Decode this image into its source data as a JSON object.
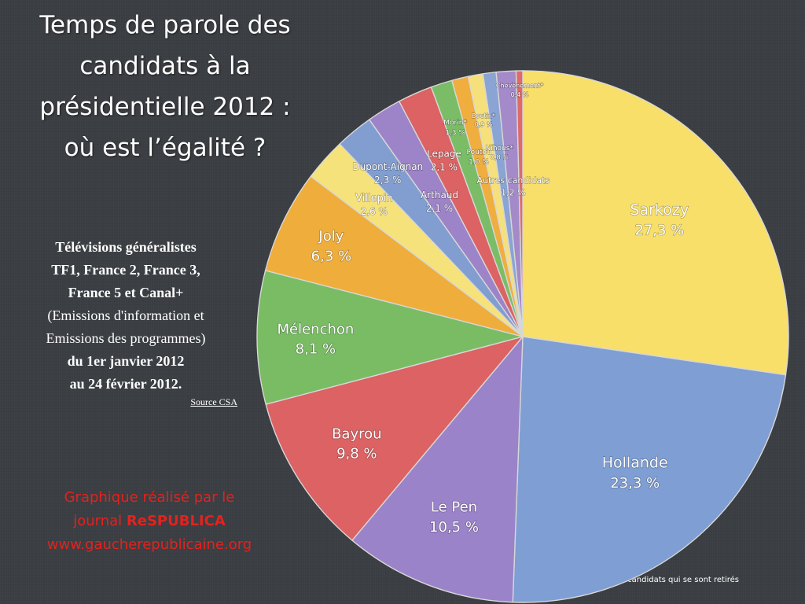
{
  "title_lines": [
    "Temps de parole des",
    "candidats à la",
    "présidentielle 2012 :",
    "où est l’égalité ?"
  ],
  "side_panel": {
    "line1": "Télévisions généralistes",
    "line2": "TF1, France 2, France 3,",
    "line3": "France 5 et Canal+",
    "line4": "(Emissions d'information et",
    "line5": "Emissions des programmes)",
    "line6": "du 1er janvier 2012",
    "line7": "au 24 février 2012.",
    "source": "Source CSA"
  },
  "credit": {
    "line1": "Graphique réalisé par le",
    "line2_prefix": "journal ",
    "line2_brand": "ReSPUBLICA",
    "line3": "www.gaucherepublicaine.org"
  },
  "footnote": "* candidats qui se sont retirés",
  "chart_data": {
    "type": "pie",
    "title": "Temps de parole des candidats à la présidentielle 2012 : où est l’égalité ?",
    "slices": [
      {
        "label": "Sarkozy",
        "value_label": "27,3 %",
        "value": 27.3,
        "color": "#f7df6a"
      },
      {
        "label": "Hollande",
        "value_label": "23,3 %",
        "value": 23.3,
        "color": "#7f9ed3"
      },
      {
        "label": "Le Pen",
        "value_label": "10,5 %",
        "value": 10.5,
        "color": "#9b83c9"
      },
      {
        "label": "Bayrou",
        "value_label": "9,8 %",
        "value": 9.8,
        "color": "#dc6263"
      },
      {
        "label": "Mélenchon",
        "value_label": "8,1 %",
        "value": 8.1,
        "color": "#79bc64"
      },
      {
        "label": "Joly",
        "value_label": "6,3 %",
        "value": 6.3,
        "color": "#efad3c"
      },
      {
        "label": "Villepin",
        "value_label": "2,6 %",
        "value": 2.6,
        "color": "#f6e27a"
      },
      {
        "label": "Dupont-Aignan",
        "value_label": "2,3 %",
        "value": 2.3,
        "color": "#829ed0"
      },
      {
        "label": "Arthaud",
        "value_label": "2,1 %",
        "value": 2.1,
        "color": "#9d83c7"
      },
      {
        "label": "Lepage",
        "value_label": "2,1 %",
        "value": 2.1,
        "color": "#dc6263"
      },
      {
        "label": "Morin*",
        "value_label": "1,3 %",
        "value": 1.3,
        "color": "#7abd66"
      },
      {
        "label": "Poutou",
        "value_label": "1,0 %",
        "value": 1.0,
        "color": "#efae3d"
      },
      {
        "label": "Boutin*",
        "value_label": "0,9 %",
        "value": 0.9,
        "color": "#f5e07c"
      },
      {
        "label": "Nihous*",
        "value_label": "0,8 %",
        "value": 0.8,
        "color": "#8aa4d3"
      },
      {
        "label": "Autres candidats",
        "value_label": "1,2 %",
        "value": 1.2,
        "color": "#a48ac9"
      },
      {
        "label": "Chevènement*",
        "value_label": "0,4 %",
        "value": 0.4,
        "color": "#de6a6b"
      }
    ]
  }
}
